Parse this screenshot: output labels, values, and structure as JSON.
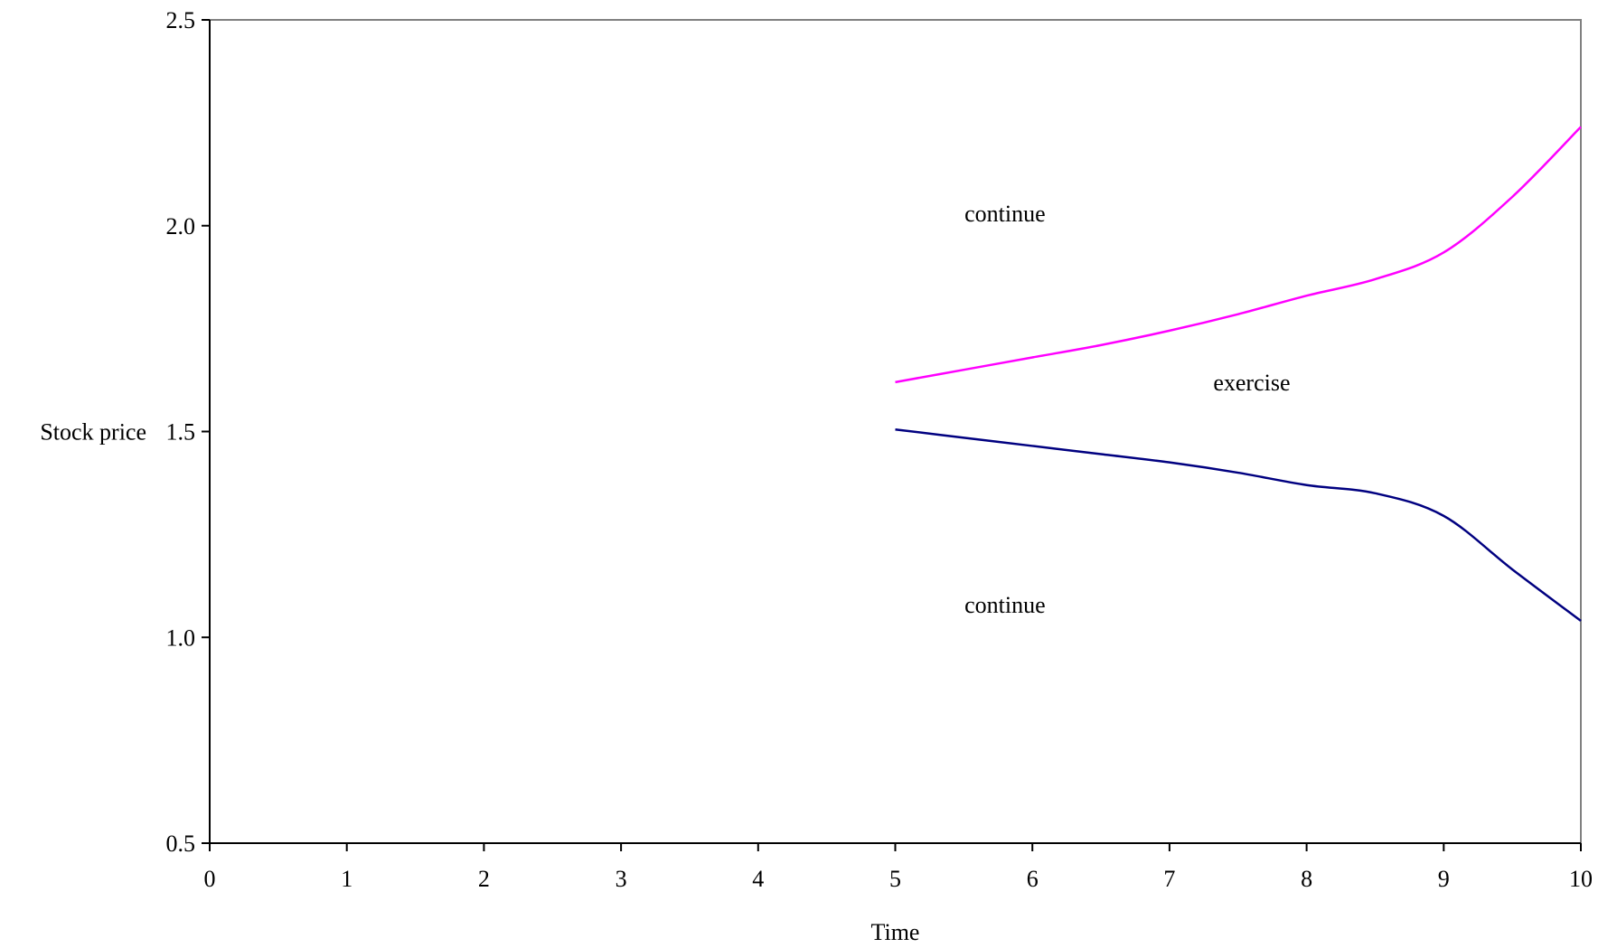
{
  "chart_data": {
    "type": "line",
    "title": "",
    "xlabel": "Time",
    "ylabel": "Stock price",
    "xlim": [
      0,
      10
    ],
    "ylim": [
      0.5,
      2.5
    ],
    "x_ticks": [
      0,
      1,
      2,
      3,
      4,
      5,
      6,
      7,
      8,
      9,
      10
    ],
    "x_tick_labels": [
      "0",
      "1",
      "2",
      "3",
      "4",
      "5",
      "6",
      "7",
      "8",
      "9",
      "10"
    ],
    "y_ticks": [
      0.5,
      1.0,
      1.5,
      2.0,
      2.5
    ],
    "y_tick_labels": [
      "0.5",
      "1.0",
      "1.5",
      "2.0",
      "2.5"
    ],
    "grid": false,
    "legend": "none",
    "series": [
      {
        "color": "#ff00ff",
        "x": [
          5,
          5.5,
          6,
          6.5,
          7,
          7.5,
          8,
          8.5,
          9,
          9.5,
          10
        ],
        "y": [
          1.62,
          1.65,
          1.68,
          1.71,
          1.745,
          1.785,
          1.83,
          1.87,
          1.935,
          2.07,
          2.24
        ]
      },
      {
        "color": "#000080",
        "x": [
          5,
          5.5,
          6,
          6.5,
          7,
          7.5,
          8,
          8.5,
          9,
          9.5,
          10
        ],
        "y": [
          1.505,
          1.485,
          1.465,
          1.445,
          1.425,
          1.4,
          1.37,
          1.35,
          1.295,
          1.165,
          1.04
        ]
      }
    ],
    "annotations": [
      {
        "text": "continue",
        "x": 5.8,
        "y": 2.03
      },
      {
        "text": "exercise",
        "x": 7.6,
        "y": 1.62
      },
      {
        "text": "continue",
        "x": 5.8,
        "y": 1.08
      }
    ]
  }
}
